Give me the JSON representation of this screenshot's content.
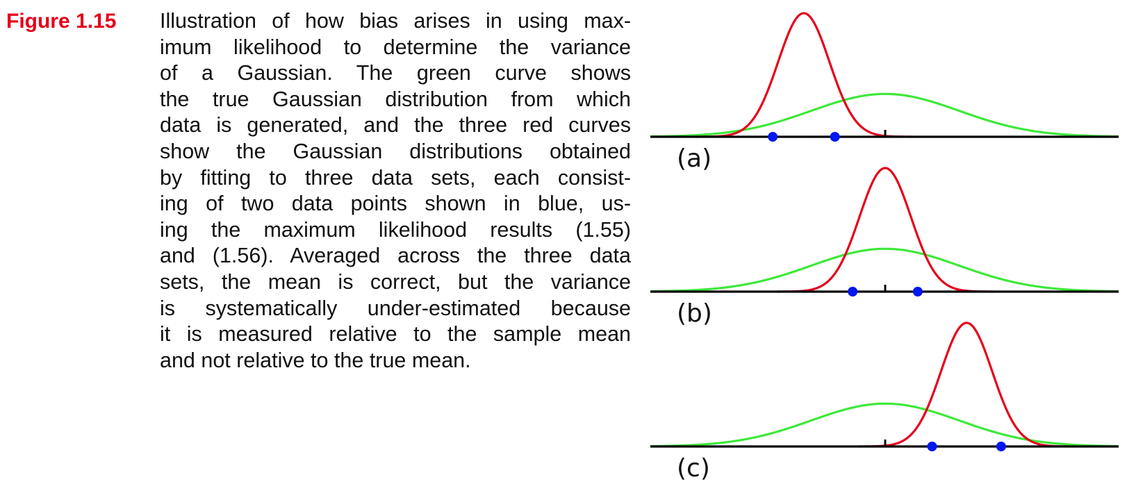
{
  "figure": {
    "label": "Figure 1.15",
    "caption_lines": [
      "Illustration of how bias arises in using max-",
      "imum likelihood to determine the variance",
      "of a Gaussian.  The green curve shows",
      "the true Gaussian distribution from which",
      "data is generated, and the three red curves",
      "show the Gaussian distributions obtained",
      "by fitting to three data sets, each consist-",
      "ing of two data points shown in blue, us-",
      "ing the maximum likelihood results (1.55)",
      "and (1.56). Averaged across the three data",
      "sets, the mean is correct, but the variance",
      "is systematically under-estimated because",
      "it is measured relative to the sample mean",
      "and not relative to the true mean."
    ]
  },
  "colors": {
    "label": "#e5001b",
    "true_curve": "#3ee83a",
    "fitted_curve": "#e5001b",
    "data_points": "#0018f0",
    "axis": "#000000"
  },
  "chart_data": {
    "type": "line",
    "xlim": [
      -5,
      5
    ],
    "panels": [
      {
        "label": "(a)",
        "true_mean": 0,
        "true_sd": 1.5,
        "fitted_mean": -1.65,
        "fitted_sd": 0.52,
        "points": [
          -1.02,
          -2.28
        ]
      },
      {
        "label": "(b)",
        "true_mean": 0,
        "true_sd": 1.5,
        "fitted_mean": 0,
        "fitted_sd": 0.52,
        "points": [
          0.66,
          -0.66
        ]
      },
      {
        "label": "(c)",
        "true_mean": 0,
        "true_sd": 1.5,
        "fitted_mean": 1.65,
        "fitted_sd": 0.52,
        "points": [
          2.35,
          0.95
        ]
      }
    ]
  }
}
